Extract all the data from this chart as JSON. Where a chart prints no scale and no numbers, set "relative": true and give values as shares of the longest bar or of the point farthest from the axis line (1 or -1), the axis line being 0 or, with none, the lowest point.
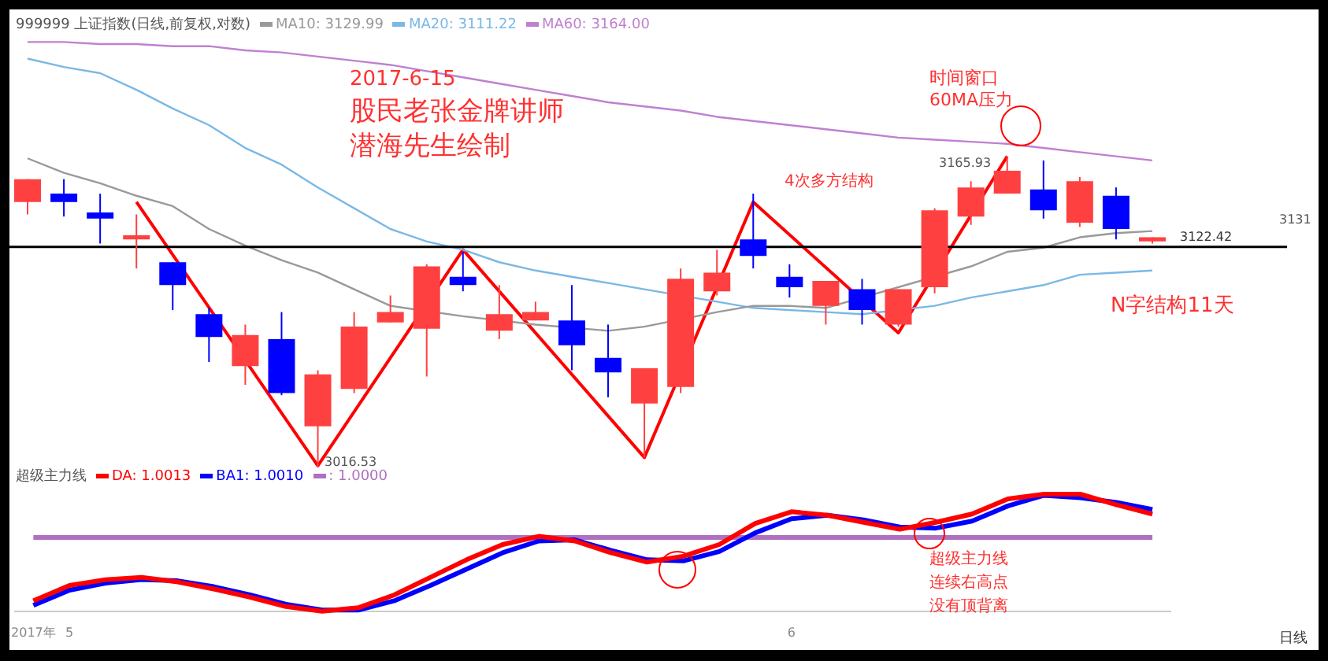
{
  "chart_data": [
    {
      "type": "candlestick",
      "title": "999999 上证指数(日线,前复权,对数)",
      "categories": [
        null,
        null,
        null,
        null,
        null,
        null,
        null,
        null,
        null,
        null,
        null,
        null,
        null,
        null,
        null,
        null,
        null,
        null,
        null,
        null,
        null,
        null,
        null,
        null,
        null,
        null,
        null,
        null,
        null,
        null,
        null,
        null
      ],
      "ohlc": [
        [
          3144,
          3155,
          3138,
          3155
        ],
        [
          3148,
          3155,
          3137,
          3144
        ],
        [
          3139,
          3148,
          3124,
          3136
        ],
        [
          3126,
          3138,
          3112,
          3128
        ],
        [
          3115,
          3115,
          3092,
          3104
        ],
        [
          3090,
          3093,
          3067,
          3079
        ],
        [
          3065,
          3085,
          3056,
          3080
        ],
        [
          3078,
          3091,
          3051,
          3052
        ],
        [
          3036,
          3063,
          3016.53,
          3061
        ],
        [
          3054,
          3091,
          3052,
          3084
        ],
        [
          3086,
          3099,
          3086,
          3091
        ],
        [
          3083,
          3114,
          3060,
          3113
        ],
        [
          3108,
          3120,
          3101,
          3104
        ],
        [
          3082,
          3104,
          3078,
          3090
        ],
        [
          3087,
          3096,
          3087,
          3091
        ],
        [
          3087,
          3104,
          3063,
          3075
        ],
        [
          3069,
          3085,
          3050,
          3062
        ],
        [
          3047,
          3064,
          3021,
          3064
        ],
        [
          3055,
          3112,
          3052,
          3107
        ],
        [
          3101,
          3121,
          3099,
          3110
        ],
        [
          3126,
          3148,
          3112,
          3118
        ],
        [
          3108,
          3114,
          3098,
          3103
        ],
        [
          3094,
          3106,
          3085,
          3106
        ],
        [
          3102,
          3107,
          3085,
          3092
        ],
        [
          3085,
          3102,
          3084,
          3102
        ],
        [
          3103,
          3141,
          3100,
          3140
        ],
        [
          3137,
          3154,
          3133,
          3151
        ],
        [
          3148,
          3165.93,
          3148,
          3159
        ],
        [
          3150,
          3164,
          3136,
          3140
        ],
        [
          3134,
          3156,
          3132,
          3154
        ],
        [
          3147,
          3151,
          3126,
          3131
        ],
        [
          3125,
          3127,
          3124,
          3127
        ]
      ],
      "colors": [
        "#ff4040",
        "#0000ff",
        "#0000ff",
        "#ff4040",
        "#0000ff",
        "#0000ff",
        "#ff4040",
        "#0000ff",
        "#ff4040",
        "#ff4040",
        "#ff4040",
        "#ff4040",
        "#0000ff",
        "#ff4040",
        "#ff4040",
        "#0000ff",
        "#0000ff",
        "#ff4040",
        "#ff4040",
        "#ff4040",
        "#0000ff",
        "#0000ff",
        "#ff4040",
        "#0000ff",
        "#ff4040",
        "#ff4040",
        "#ff4040",
        "#ff4040",
        "#0000ff",
        "#ff4040",
        "#0000ff",
        "#ff4040"
      ],
      "series": [
        {
          "type": "line",
          "name": "MA10: 3129.99",
          "color": "#999999",
          "values": [
            3165,
            3158,
            3153,
            3147,
            3142,
            3131,
            3123,
            3116,
            3110,
            3102,
            3094,
            null,
            3089,
            null,
            3085,
            null,
            3082,
            3084,
            null,
            3091,
            3094,
            3094,
            3093,
            null,
            null,
            null,
            3113,
            3120,
            3122,
            3127,
            3129,
            3130
          ]
        },
        {
          "type": "line",
          "name": "MA20: 3111.22",
          "color": "#7ab8e6",
          "values": [
            3213,
            3209,
            3206,
            3198,
            3189,
            3181,
            3170,
            3162,
            3151,
            3141,
            3131,
            3125,
            3121,
            3115,
            3111,
            3108,
            3105,
            3102,
            null,
            3096,
            3093,
            3092,
            3091,
            3090,
            null,
            3094,
            3098,
            3101,
            3104,
            3109,
            3110,
            3111
          ]
        },
        {
          "type": "line",
          "name": "MA60: 3164.00",
          "color": "#c080d0",
          "values": [
            3221,
            3221,
            3220,
            3220,
            3219,
            3219,
            3217,
            3216,
            3214,
            3212,
            3210,
            3207,
            3204,
            3201,
            3198,
            3195,
            3192,
            3190,
            3188,
            3185,
            3183,
            3181,
            3179,
            3177,
            3175,
            3174,
            3173,
            3172,
            3170,
            3168,
            3166,
            3164
          ]
        },
        {
          "type": "line",
          "color": "#ff0000",
          "values": [
            null,
            null,
            null,
            3144,
            null,
            null,
            null,
            null,
            3017,
            null,
            null,
            null,
            3121,
            null,
            null,
            null,
            null,
            3021,
            null,
            null,
            3144,
            null,
            null,
            null,
            3081,
            null,
            null,
            3166,
            null,
            null,
            null,
            null
          ]
        }
      ],
      "tick_labels": false,
      "legend": "top left",
      "ref_lines": [
        {
          "axis": "y",
          "value": 3122.42,
          "label": "3122.42",
          "color": "#000000"
        }
      ],
      "annotations": [
        "2017-6-15",
        "股民老张金牌讲师",
        "潜海先生绘制",
        "时间窗口",
        "60MA压力",
        "4次多方结构",
        "N字结构11天",
        "3165.93",
        "3016.53",
        "3131"
      ]
    },
    {
      "type": "line",
      "title": "超级主力线",
      "relative": true,
      "categories": [
        "2017年",
        "5",
        null,
        null,
        null,
        null,
        null,
        null,
        null,
        null,
        null,
        null,
        null,
        null,
        null,
        null,
        null,
        null,
        null,
        null,
        null,
        "6",
        null,
        null,
        null,
        null,
        null,
        null,
        null,
        null,
        null,
        null
      ],
      "series": [
        {
          "name": "DA: 1.0013",
          "color": "#ff0000",
          "values": [
            0.09,
            0.22,
            0.27,
            0.29,
            0.25,
            0.19,
            0.12,
            0.04,
            0,
            0.03,
            0.14,
            0.29,
            0.44,
            0.57,
            0.64,
            0.6,
            0.5,
            0.42,
            0.47,
            0.57,
            0.75,
            0.85,
            0.82,
            0.76,
            0.7,
            0.76,
            0.83,
            0.96,
            1,
            1,
            0.91,
            0.83
          ]
        },
        {
          "name": "BA1: 1.0010",
          "color": "#0000ff",
          "values": [
            0.05,
            0.18,
            0.24,
            0.27,
            0.26,
            0.21,
            0.14,
            0.06,
            0.01,
            0.01,
            0.09,
            0.22,
            0.36,
            0.5,
            0.6,
            0.61,
            0.52,
            0.44,
            0.43,
            0.51,
            0.67,
            0.79,
            0.82,
            0.78,
            0.72,
            0.71,
            0.77,
            0.9,
            0.99,
            0.97,
            0.93,
            0.87
          ]
        },
        {
          "name": ": 1.0000",
          "color": "#b070c0",
          "values": [
            0.63,
            0.63,
            0.63,
            0.63,
            0.63,
            0.63,
            0.63,
            0.63,
            0.63,
            0.63,
            0.63,
            0.63,
            0.63,
            0.63,
            0.63,
            0.63,
            0.63,
            0.63,
            0.63,
            0.63,
            0.63,
            0.63,
            0.63,
            0.63,
            0.63,
            0.63,
            0.63,
            0.63,
            0.63,
            0.63,
            0.63,
            0.63
          ]
        }
      ],
      "tick_labels": "x",
      "legend": "top left",
      "annotations": [
        "超级主力线",
        "连续右高点",
        "没有顶背离",
        "日线"
      ]
    }
  ]
}
